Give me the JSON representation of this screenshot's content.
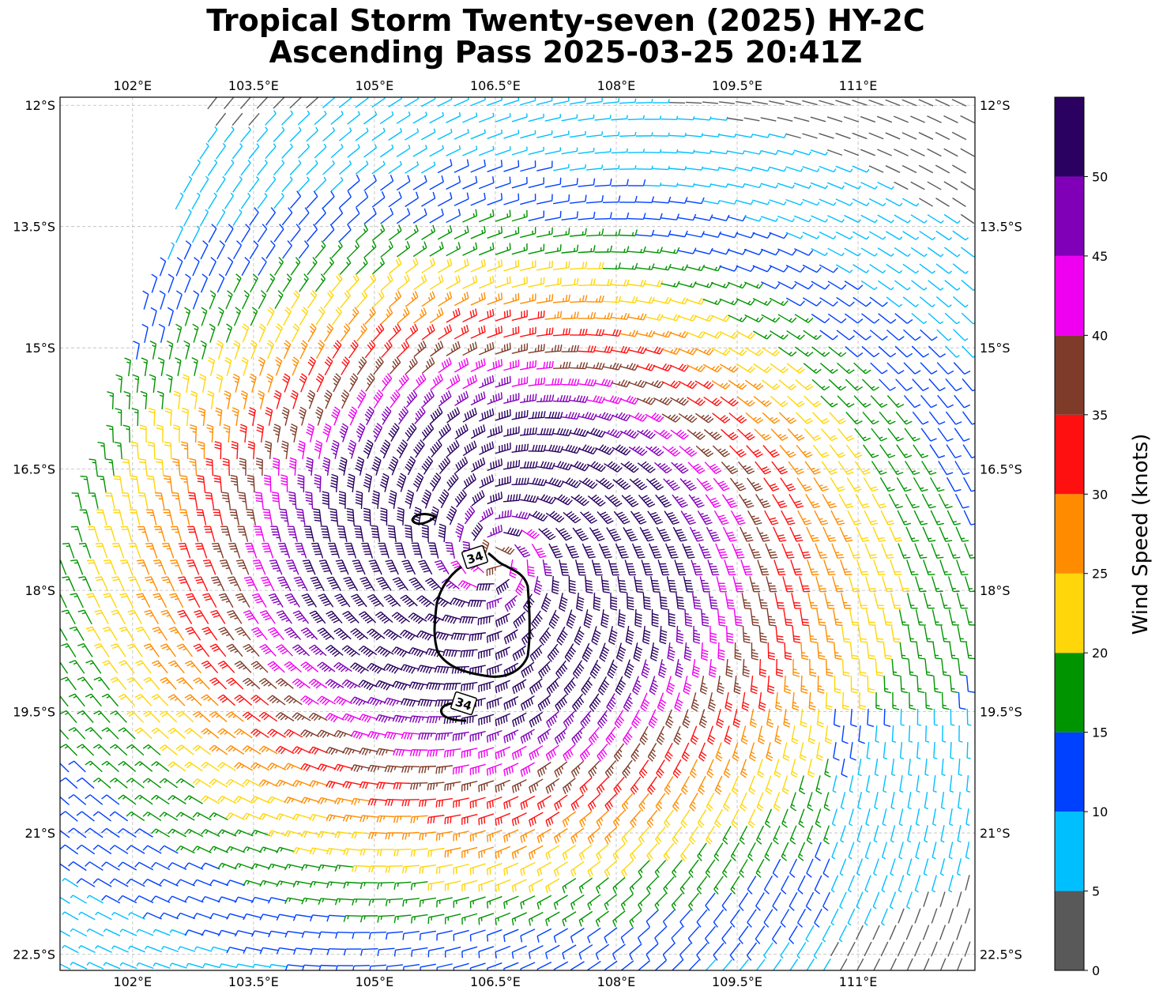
{
  "title": {
    "line1": "Tropical Storm Twenty-seven (2025) HY-2C",
    "line2": "Ascending Pass 2025-03-25 20:41Z"
  },
  "map": {
    "lon_range": [
      101.1,
      112.45
    ],
    "lat_range": [
      -22.7,
      -11.9
    ],
    "lon_ticks": [
      102,
      103.5,
      105,
      106.5,
      108,
      109.5,
      111
    ],
    "lon_tick_labels": [
      "102°E",
      "103.5°E",
      "105°E",
      "106.5°E",
      "108°E",
      "109.5°E",
      "111°E"
    ],
    "lat_ticks": [
      -12,
      -13.5,
      -15,
      -16.5,
      -18,
      -19.5,
      -21,
      -22.5
    ],
    "lat_tick_labels": [
      "12°S",
      "13.5°S",
      "15°S",
      "16.5°S",
      "18°S",
      "19.5°S",
      "21°S",
      "22.5°S"
    ],
    "gridlines": true,
    "storm_center": {
      "lon": 106.5,
      "lat": -17.6
    },
    "contour_label": "34"
  },
  "colorbar": {
    "label": "Wind Speed (knots)",
    "ticks": [
      "0",
      "5",
      "10",
      "15",
      "20",
      "25",
      "30",
      "35",
      "40",
      "45",
      "50"
    ],
    "bins": [
      {
        "min": 0,
        "max": 5,
        "color": "#595959"
      },
      {
        "min": 5,
        "max": 10,
        "color": "#00bfff"
      },
      {
        "min": 10,
        "max": 15,
        "color": "#0040ff"
      },
      {
        "min": 15,
        "max": 20,
        "color": "#009400"
      },
      {
        "min": 20,
        "max": 25,
        "color": "#ffd60a"
      },
      {
        "min": 25,
        "max": 30,
        "color": "#ff8c00"
      },
      {
        "min": 30,
        "max": 35,
        "color": "#ff1010"
      },
      {
        "min": 35,
        "max": 40,
        "color": "#7f3b2a"
      },
      {
        "min": 40,
        "max": 45,
        "color": "#f000f0"
      },
      {
        "min": 45,
        "max": 50,
        "color": "#8000b8"
      },
      {
        "min": 50,
        "max": 55,
        "color": "#2a0060"
      }
    ]
  }
}
